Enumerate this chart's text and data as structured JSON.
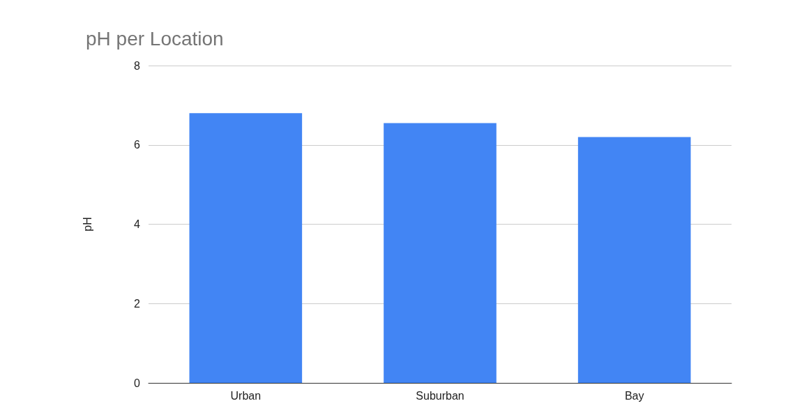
{
  "chart_data": {
    "type": "bar",
    "title": "pH per Location",
    "ylabel": "pH",
    "categories": [
      "Urban",
      "Suburban",
      "Bay"
    ],
    "values": [
      6.8,
      6.55,
      6.2
    ],
    "color": "#4285f4",
    "ylim": [
      0,
      8
    ],
    "yticks": [
      0,
      2,
      4,
      6,
      8
    ],
    "grid": "y"
  }
}
